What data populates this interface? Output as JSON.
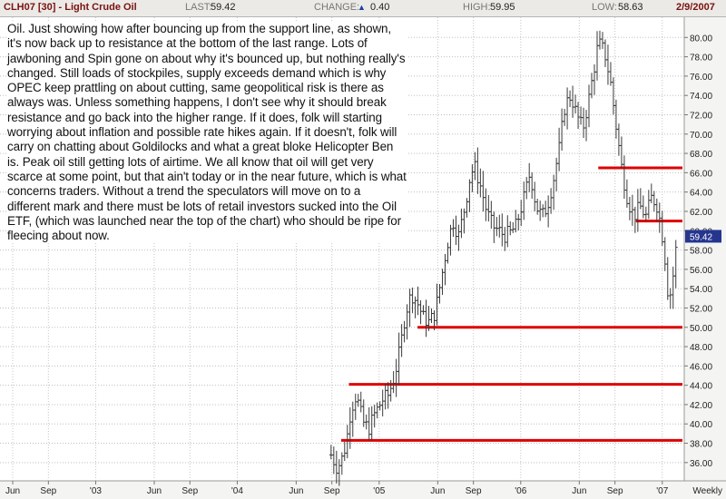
{
  "header": {
    "symbol": "CLH07 [30] - Light Crude Oil",
    "last_label": "LAST:",
    "last_value": "59.42",
    "change_label": "CHANGE:",
    "change_value": "0.40",
    "change_icon": "triangle-up-icon",
    "high_label": "HIGH:",
    "high_value": "59.95",
    "low_label": "LOW:",
    "low_value": "58.63",
    "date": "2/9/2007"
  },
  "annotation": "Oil. Just showing how after bouncing up from the support line, as shown, it's now back up to resistance at the bottom of the last range. Lots of jawboning and Spin gone on about why it's bounced up, but nothing really's changed. Still loads of stockpiles, supply exceeds demand which is why OPEC keep prattling on about cutting, same geopolitical risk is there as always was. Unless something happens, I don't see why it should break resistance and go back into the higher range. If it does, folk will starting worrying about inflation and possible rate hikes again. If it doesn't, folk will carry on chatting about Goldilocks and what a great bloke Helicopter Ben is. Peak oil still getting lots of airtime. We all know that oil will get very scarce at some point, but that ain't today or in the near future, which is what concerns traders. Without a trend the speculators will move on to a different mark and there must be lots of retail investors sucked into the Oil ETF, (which was launched near the top of the chart) who should be ripe for fleecing about now.",
  "chart_data": {
    "type": "bar",
    "style": "ohlc",
    "period_label": "Weekly",
    "y_ticks": [
      36,
      38,
      40,
      42,
      44,
      46,
      48,
      50,
      52,
      54,
      56,
      58,
      60,
      62,
      64,
      66,
      68,
      70,
      72,
      74,
      76,
      78,
      80
    ],
    "y_tick_labels": [
      "36.00",
      "38.00",
      "40.00",
      "42.00",
      "44.00",
      "46.00",
      "48.00",
      "50.00",
      "52.00",
      "54.00",
      "56.00",
      "58.00",
      "60.00",
      "62.00",
      "64.00",
      "66.00",
      "68.00",
      "70.00",
      "72.00",
      "74.00",
      "76.00",
      "78.00",
      "80.00"
    ],
    "ylim": [
      34.2,
      82
    ],
    "x_range": [
      "2002-06-01",
      "2007-02-22"
    ],
    "x_ticks": [
      {
        "date": "2002-06-01",
        "label": "Jun"
      },
      {
        "date": "2002-09-01",
        "label": "Sep"
      },
      {
        "date": "2003-01-01",
        "label": "'03"
      },
      {
        "date": "2003-06-01",
        "label": "Jun"
      },
      {
        "date": "2003-09-01",
        "label": "Sep"
      },
      {
        "date": "2004-01-01",
        "label": "'04"
      },
      {
        "date": "2004-06-01",
        "label": "Jun"
      },
      {
        "date": "2004-09-01",
        "label": "Sep"
      },
      {
        "date": "2005-01-01",
        "label": "'05"
      },
      {
        "date": "2005-06-01",
        "label": "Jun"
      },
      {
        "date": "2005-09-01",
        "label": "Sep"
      },
      {
        "date": "2006-01-01",
        "label": "'06"
      },
      {
        "date": "2006-06-01",
        "label": "Jun"
      },
      {
        "date": "2006-09-01",
        "label": "Sep"
      },
      {
        "date": "2007-01-01",
        "label": "'07"
      }
    ],
    "last_price_label": "59.42",
    "bar_color": "#3a3a3a",
    "support_resistance_color": "#dd0000",
    "levels": [
      {
        "from": "2006-07-20",
        "to": "2007-02-22",
        "price": 66.5
      },
      {
        "from": "2006-10-25",
        "to": "2007-02-22",
        "price": 61.0
      },
      {
        "from": "2005-04-10",
        "to": "2007-02-22",
        "price": 50.0
      },
      {
        "from": "2004-10-15",
        "to": "2007-02-22",
        "price": 44.1
      },
      {
        "from": "2004-09-25",
        "to": "2007-02-22",
        "price": 38.3
      }
    ],
    "waypoints": [
      [
        "2004-08-30",
        36.8
      ],
      [
        "2004-09-15",
        35.4
      ],
      [
        "2004-09-28",
        36.5
      ],
      [
        "2004-10-08",
        38.0
      ],
      [
        "2004-10-20",
        41.5
      ],
      [
        "2004-11-03",
        43.0
      ],
      [
        "2004-11-20",
        40.2
      ],
      [
        "2004-12-05",
        39.5
      ],
      [
        "2004-12-20",
        41.0
      ],
      [
        "2005-01-10",
        42.5
      ],
      [
        "2005-01-25",
        43.0
      ],
      [
        "2005-02-10",
        45.0
      ],
      [
        "2005-02-25",
        48.0
      ],
      [
        "2005-03-10",
        51.5
      ],
      [
        "2005-03-25",
        53.5
      ],
      [
        "2005-04-10",
        52.5
      ],
      [
        "2005-04-25",
        51.0
      ],
      [
        "2005-05-10",
        50.5
      ],
      [
        "2005-05-25",
        51.5
      ],
      [
        "2005-06-10",
        55.0
      ],
      [
        "2005-06-25",
        58.5
      ],
      [
        "2005-07-10",
        61.0
      ],
      [
        "2005-07-25",
        59.5
      ],
      [
        "2005-08-10",
        62.5
      ],
      [
        "2005-08-25",
        66.0
      ],
      [
        "2005-09-05",
        66.5
      ],
      [
        "2005-09-20",
        64.5
      ],
      [
        "2005-10-05",
        62.0
      ],
      [
        "2005-10-20",
        60.5
      ],
      [
        "2005-11-05",
        60.0
      ],
      [
        "2005-11-20",
        59.5
      ],
      [
        "2005-12-05",
        59.8
      ],
      [
        "2005-12-20",
        60.5
      ],
      [
        "2006-01-10",
        63.5
      ],
      [
        "2006-01-25",
        66.0
      ],
      [
        "2006-02-10",
        62.5
      ],
      [
        "2006-02-25",
        61.5
      ],
      [
        "2006-03-10",
        62.5
      ],
      [
        "2006-03-25",
        65.0
      ],
      [
        "2006-04-10",
        68.5
      ],
      [
        "2006-04-25",
        73.0
      ],
      [
        "2006-05-10",
        74.0
      ],
      [
        "2006-05-25",
        72.0
      ],
      [
        "2006-06-10",
        70.5
      ],
      [
        "2006-06-25",
        73.5
      ],
      [
        "2006-07-10",
        77.0
      ],
      [
        "2006-07-20",
        79.5
      ],
      [
        "2006-08-05",
        78.5
      ],
      [
        "2006-08-20",
        75.5
      ],
      [
        "2006-09-05",
        70.5
      ],
      [
        "2006-09-20",
        66.0
      ],
      [
        "2006-10-05",
        63.0
      ],
      [
        "2006-10-20",
        61.5
      ],
      [
        "2006-11-05",
        62.5
      ],
      [
        "2006-11-20",
        61.5
      ],
      [
        "2006-12-05",
        63.5
      ],
      [
        "2006-12-20",
        62.5
      ],
      [
        "2007-01-05",
        58.5
      ],
      [
        "2007-01-18",
        52.5
      ],
      [
        "2007-01-28",
        55.0
      ],
      [
        "2007-02-09",
        59.5
      ]
    ]
  }
}
